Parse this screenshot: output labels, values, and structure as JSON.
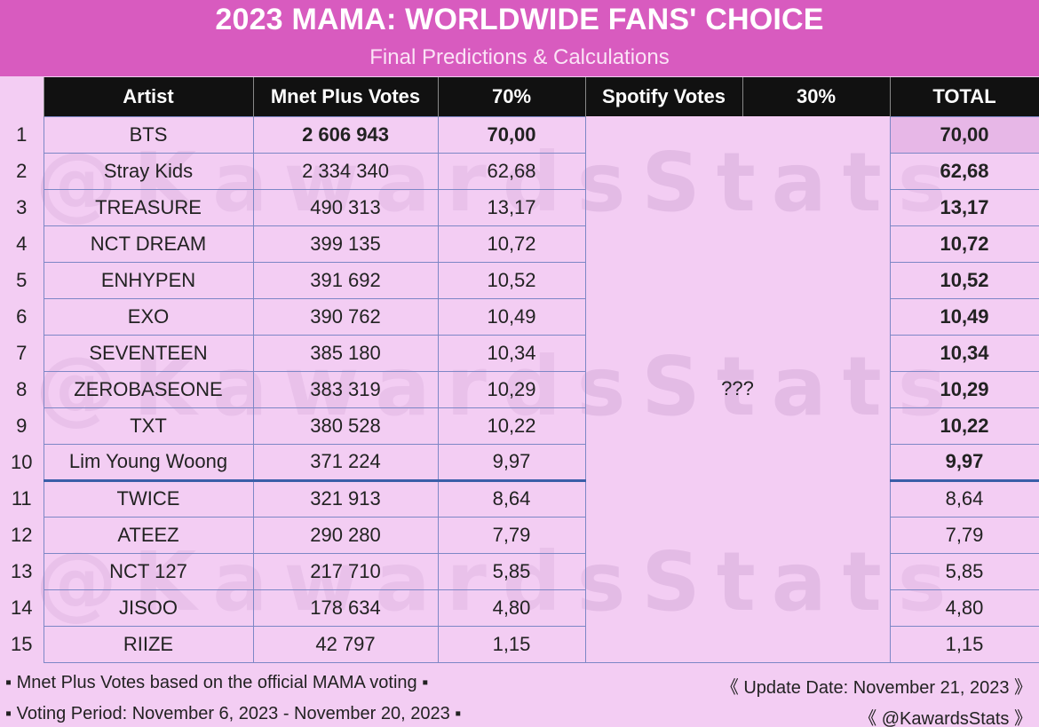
{
  "header": {
    "title": "2023 MAMA: WORLDWIDE FANS' CHOICE",
    "subtitle": "Final Predictions & Calculations"
  },
  "watermark": "@KawardsStats",
  "columns": {
    "artist": "Artist",
    "mnet_votes": "Mnet Plus Votes",
    "mnet_pct": "70%",
    "spotify_votes": "Spotify Votes",
    "spotify_pct": "30%",
    "total": "TOTAL"
  },
  "spotify_placeholder": "???",
  "rows": [
    {
      "rank": "1",
      "artist": "BTS",
      "votes": "2 606 943",
      "pct": "70,00",
      "total": "70,00"
    },
    {
      "rank": "2",
      "artist": "Stray Kids",
      "votes": "2 334 340",
      "pct": "62,68",
      "total": "62,68"
    },
    {
      "rank": "3",
      "artist": "TREASURE",
      "votes": "490 313",
      "pct": "13,17",
      "total": "13,17"
    },
    {
      "rank": "4",
      "artist": "NCT DREAM",
      "votes": "399 135",
      "pct": "10,72",
      "total": "10,72"
    },
    {
      "rank": "5",
      "artist": "ENHYPEN",
      "votes": "391 692",
      "pct": "10,52",
      "total": "10,52"
    },
    {
      "rank": "6",
      "artist": "EXO",
      "votes": "390 762",
      "pct": "10,49",
      "total": "10,49"
    },
    {
      "rank": "7",
      "artist": "SEVENTEEN",
      "votes": "385 180",
      "pct": "10,34",
      "total": "10,34"
    },
    {
      "rank": "8",
      "artist": "ZEROBASEONE",
      "votes": "383 319",
      "pct": "10,29",
      "total": "10,29"
    },
    {
      "rank": "9",
      "artist": "TXT",
      "votes": "380 528",
      "pct": "10,22",
      "total": "10,22"
    },
    {
      "rank": "10",
      "artist": "Lim Young Woong",
      "votes": "371 224",
      "pct": "9,97",
      "total": "9,97"
    },
    {
      "rank": "11",
      "artist": "TWICE",
      "votes": "321 913",
      "pct": "8,64",
      "total": "8,64"
    },
    {
      "rank": "12",
      "artist": "ATEEZ",
      "votes": "290 280",
      "pct": "7,79",
      "total": "7,79"
    },
    {
      "rank": "13",
      "artist": "NCT 127",
      "votes": "217 710",
      "pct": "5,85",
      "total": "5,85"
    },
    {
      "rank": "14",
      "artist": "JISOO",
      "votes": "178 634",
      "pct": "4,80",
      "total": "4,80"
    },
    {
      "rank": "15",
      "artist": "RIIZE",
      "votes": "42 797",
      "pct": "1,15",
      "total": "1,15"
    }
  ],
  "footer": {
    "note_votes": "▪ Mnet Plus Votes based on the official MAMA voting ▪",
    "note_period": "▪ Voting Period: November 6, 2023 - November 20, 2023 ▪",
    "update_date": "《 Update Date: November 21, 2023 》",
    "handle": "《 @KawardsStats 》"
  }
}
